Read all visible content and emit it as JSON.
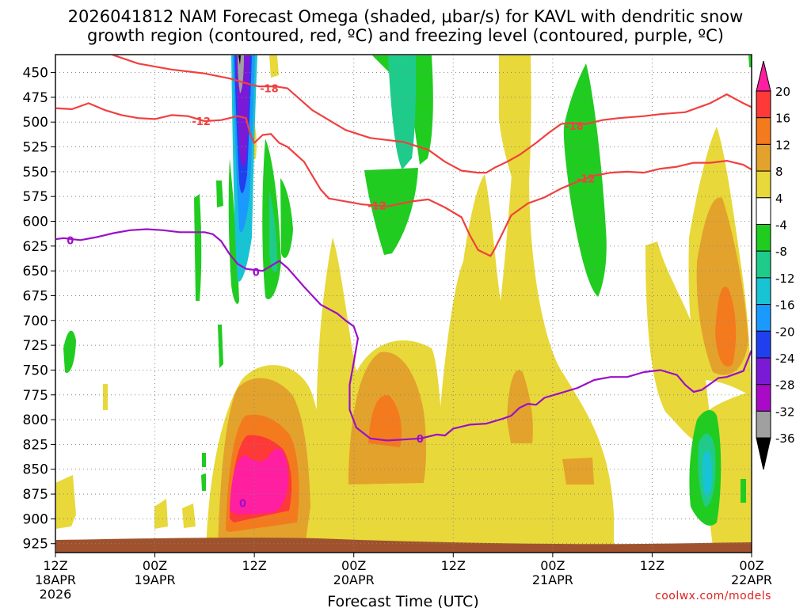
{
  "title_line1": "2026041812 NAM Forecast Omega (shaded, μbar/s) for KAVL with dendritic snow",
  "title_line2": "growth region (contoured, red, ºC) and freezing level (contoured, purple, ºC)",
  "xlabel": "Forecast Time (UTC)",
  "credit": "coolwx.com/models",
  "chart_data": {
    "type": "area",
    "title": "2026041812 NAM Forecast Omega (shaded, μbar/s) for KAVL with dendritic snow growth region (contoured, red, ºC) and freezing level (contoured, purple, ºC)",
    "xlabel": "Forecast Time (UTC)",
    "ylabel": "",
    "x_range_hours": [
      0,
      84
    ],
    "x_ticks": [
      {
        "hour": 0,
        "lines": [
          "12Z",
          "18APR",
          "2026"
        ]
      },
      {
        "hour": 12,
        "lines": [
          "00Z",
          "19APR"
        ]
      },
      {
        "hour": 24,
        "lines": [
          "12Z"
        ]
      },
      {
        "hour": 36,
        "lines": [
          "00Z",
          "20APR"
        ]
      },
      {
        "hour": 48,
        "lines": [
          "12Z"
        ]
      },
      {
        "hour": 60,
        "lines": [
          "00Z",
          "21APR"
        ]
      },
      {
        "hour": 72,
        "lines": [
          "12Z"
        ]
      },
      {
        "hour": 84,
        "lines": [
          "00Z",
          "22APR"
        ]
      }
    ],
    "y_ticks_hpa": [
      450,
      475,
      500,
      525,
      550,
      575,
      600,
      625,
      650,
      675,
      700,
      725,
      750,
      775,
      800,
      825,
      850,
      875,
      900,
      925
    ],
    "y_range_hpa": [
      432,
      934
    ],
    "grid": true,
    "colorbar": {
      "labels": [
        20,
        16,
        12,
        8,
        4,
        -4,
        -8,
        -12,
        -16,
        -20,
        -24,
        -28,
        -32,
        -36
      ],
      "colors": [
        "#ff1fa0",
        "#ff3838",
        "#f47a1e",
        "#e3a22c",
        "#e8d839",
        "#ffffff",
        "#20cc20",
        "#1fcb8a",
        "#18c4d4",
        "#1a9aff",
        "#2040f0",
        "#7a1ad6",
        "#a80ac8",
        "#a0a0a0",
        "#000000"
      ]
    },
    "contours": [
      {
        "name": "-18",
        "color": "#f04040",
        "labels": [
          {
            "text": "-18",
            "hour": 25.8,
            "hpa": 466
          },
          {
            "text": "-18",
            "hour": 62.6,
            "hpa": 504
          }
        ],
        "points": [
          [
            6.8,
            432
          ],
          [
            10,
            441
          ],
          [
            14,
            447
          ],
          [
            18,
            451
          ],
          [
            21,
            456
          ],
          [
            23.5,
            462
          ],
          [
            24.5,
            464
          ],
          [
            26.5,
            464
          ],
          [
            28,
            466
          ],
          [
            29.5,
            477
          ],
          [
            31,
            488
          ],
          [
            33,
            498
          ],
          [
            35,
            508
          ],
          [
            38,
            516
          ],
          [
            42,
            520
          ],
          [
            45,
            528
          ],
          [
            47,
            540
          ],
          [
            49,
            549
          ],
          [
            51,
            551
          ],
          [
            52,
            551
          ],
          [
            53,
            546
          ],
          [
            54.5,
            540
          ],
          [
            56,
            533
          ],
          [
            58,
            521
          ],
          [
            59.5,
            511
          ],
          [
            61,
            502
          ],
          [
            62,
            501
          ],
          [
            64,
            502
          ],
          [
            66,
            498
          ],
          [
            68,
            496
          ],
          [
            71,
            494
          ],
          [
            73,
            492
          ],
          [
            76,
            490
          ],
          [
            79,
            481
          ],
          [
            81,
            472
          ],
          [
            83,
            481
          ],
          [
            84,
            485
          ]
        ]
      },
      {
        "name": "-12",
        "color": "#f04040",
        "labels": [
          {
            "text": "-12",
            "hour": 17.6,
            "hpa": 499
          },
          {
            "text": "-12",
            "hour": 38.8,
            "hpa": 584
          },
          {
            "text": "-12",
            "hour": 64,
            "hpa": 557
          }
        ],
        "points": [
          [
            0,
            486
          ],
          [
            2,
            487
          ],
          [
            4,
            481
          ],
          [
            6,
            488
          ],
          [
            8,
            493
          ],
          [
            10,
            496
          ],
          [
            12,
            497
          ],
          [
            14,
            493
          ],
          [
            16,
            494
          ],
          [
            18,
            499
          ],
          [
            20,
            498
          ],
          [
            22,
            494
          ],
          [
            23,
            496
          ],
          [
            23.5,
            512
          ],
          [
            24,
            521
          ],
          [
            25,
            513
          ],
          [
            26,
            512
          ],
          [
            27,
            521
          ],
          [
            28,
            525
          ],
          [
            30,
            540
          ],
          [
            31,
            554
          ],
          [
            32,
            568
          ],
          [
            33,
            577
          ],
          [
            35,
            580
          ],
          [
            37,
            583
          ],
          [
            40,
            585
          ],
          [
            43,
            580
          ],
          [
            45,
            578
          ],
          [
            47,
            586
          ],
          [
            49,
            596
          ],
          [
            50,
            614
          ],
          [
            51,
            629
          ],
          [
            52,
            633
          ],
          [
            52.5,
            635
          ],
          [
            53,
            628
          ],
          [
            54,
            611
          ],
          [
            55,
            594
          ],
          [
            57,
            582
          ],
          [
            59,
            576
          ],
          [
            61,
            567
          ],
          [
            63,
            560
          ],
          [
            65,
            554
          ],
          [
            67,
            551
          ],
          [
            69,
            550
          ],
          [
            71,
            551
          ],
          [
            73,
            547
          ],
          [
            75,
            545
          ],
          [
            77,
            541
          ],
          [
            79,
            541
          ],
          [
            81,
            539
          ],
          [
            83,
            543
          ],
          [
            84,
            548
          ]
        ]
      },
      {
        "name": "0",
        "color": "#9b10c8",
        "labels": [
          {
            "text": "0",
            "hour": 1.8,
            "hpa": 619
          },
          {
            "text": "0",
            "hour": 24.2,
            "hpa": 651
          },
          {
            "text": "0",
            "hour": 44,
            "hpa": 819
          },
          {
            "text": "0",
            "hour": 22.6,
            "hpa": 884
          }
        ],
        "points": [
          [
            0,
            618
          ],
          [
            1,
            617
          ],
          [
            3,
            619
          ],
          [
            5,
            616
          ],
          [
            7,
            612
          ],
          [
            9,
            609
          ],
          [
            11,
            608
          ],
          [
            13,
            609
          ],
          [
            15,
            611
          ],
          [
            17,
            611
          ],
          [
            18,
            611
          ],
          [
            19,
            613
          ],
          [
            20,
            620
          ],
          [
            21,
            633
          ],
          [
            22,
            643
          ],
          [
            23,
            648
          ],
          [
            25,
            650
          ],
          [
            26,
            645
          ],
          [
            27,
            640
          ],
          [
            28,
            647
          ],
          [
            30,
            666
          ],
          [
            32,
            684
          ],
          [
            34,
            693
          ],
          [
            35,
            700
          ],
          [
            36,
            706
          ],
          [
            36.5,
            718
          ],
          [
            36,
            742
          ],
          [
            35.5,
            765
          ],
          [
            35.5,
            790
          ],
          [
            36.3,
            808
          ],
          [
            38,
            819
          ],
          [
            40,
            821
          ],
          [
            42,
            820
          ],
          [
            44,
            819
          ],
          [
            46,
            815
          ],
          [
            47,
            816
          ],
          [
            48,
            809
          ],
          [
            50,
            805
          ],
          [
            52,
            804
          ],
          [
            54,
            799
          ],
          [
            55,
            796
          ],
          [
            56,
            788
          ],
          [
            57,
            784
          ],
          [
            58,
            785
          ],
          [
            59,
            778
          ],
          [
            61,
            773
          ],
          [
            63,
            768
          ],
          [
            65,
            760
          ],
          [
            67,
            757
          ],
          [
            69,
            757
          ],
          [
            71,
            752
          ],
          [
            73,
            750
          ],
          [
            75,
            755
          ],
          [
            76,
            765
          ],
          [
            77,
            772
          ],
          [
            78,
            770
          ],
          [
            80,
            758
          ],
          [
            81,
            757
          ],
          [
            83,
            751
          ],
          [
            84,
            730
          ]
        ]
      }
    ]
  }
}
